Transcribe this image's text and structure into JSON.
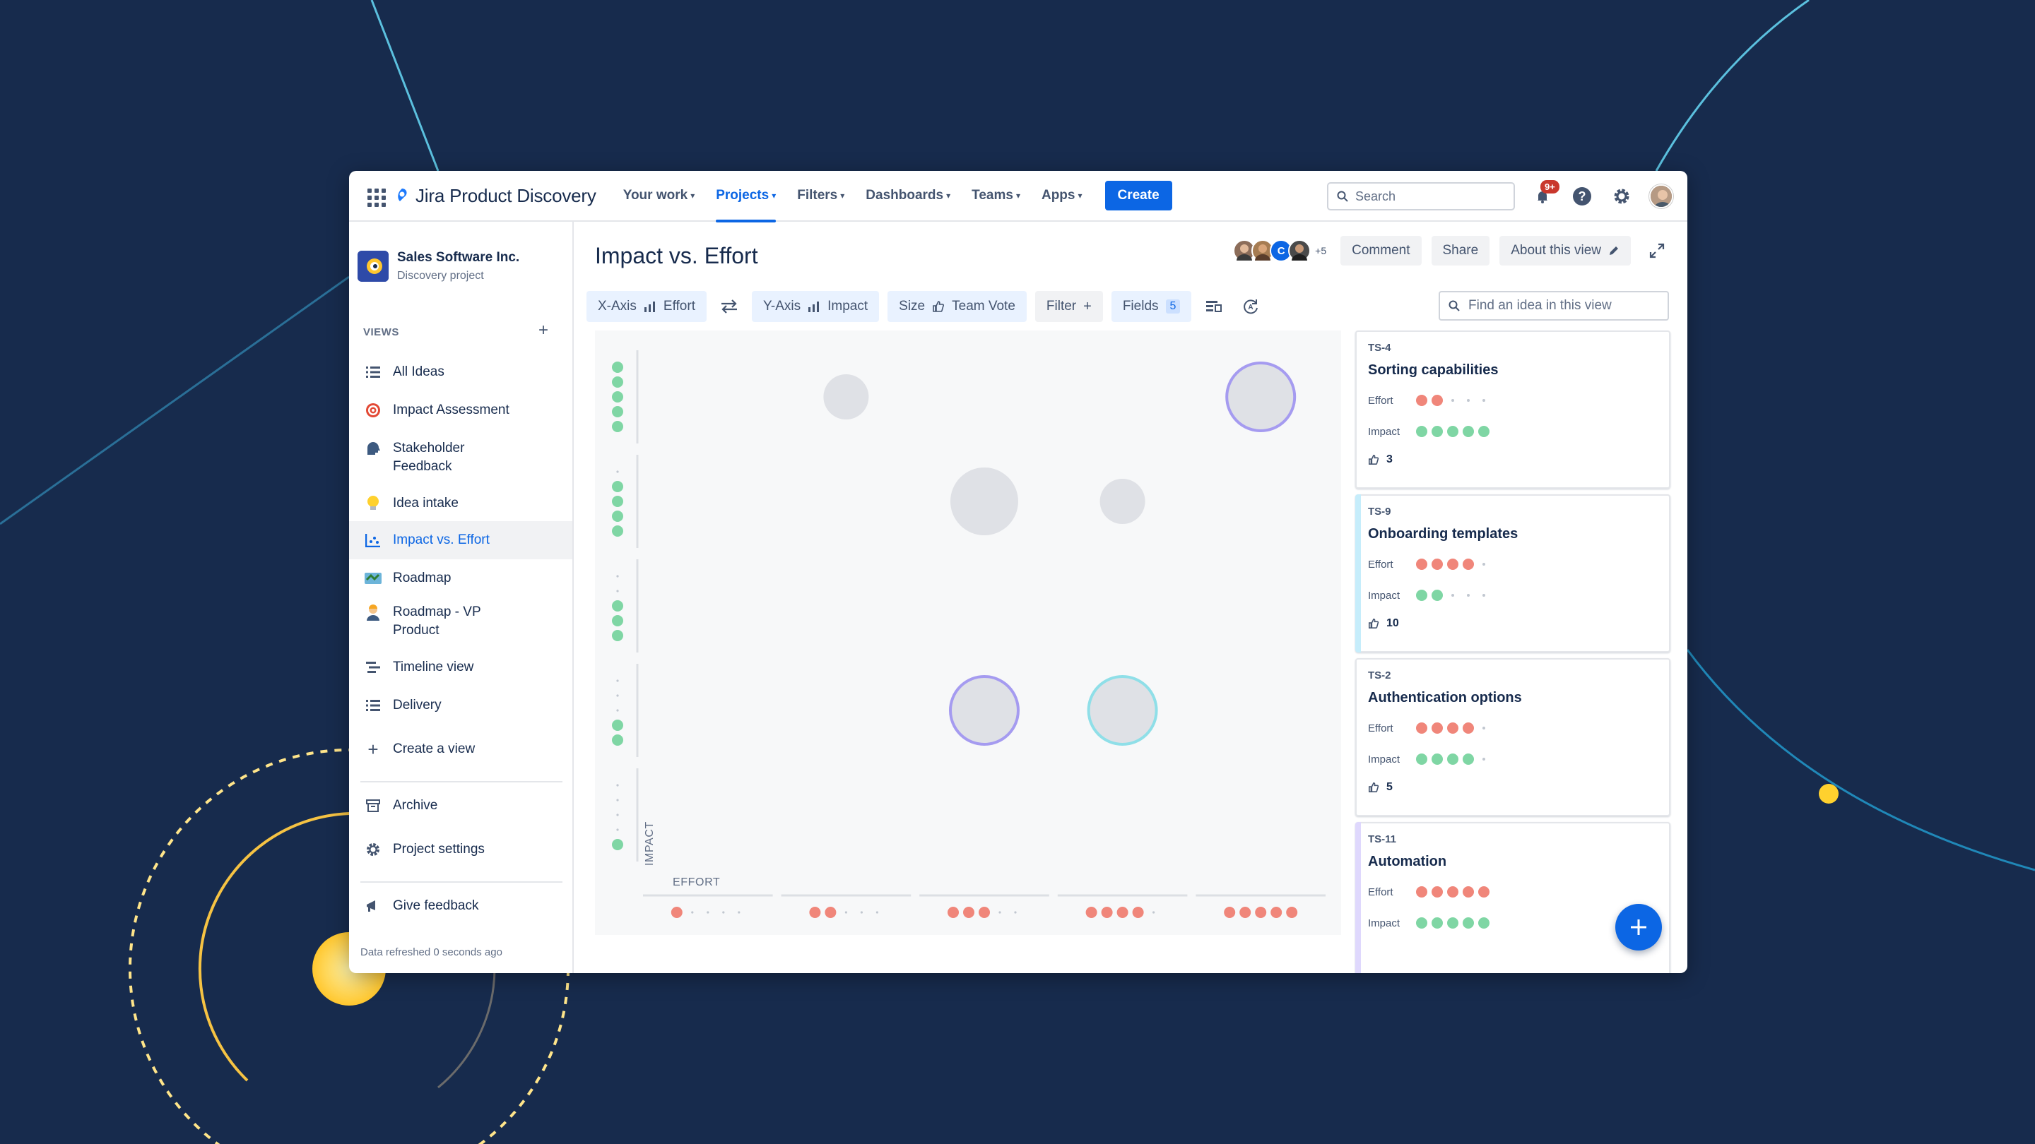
{
  "brand": {
    "app_name": "Jira Product Discovery"
  },
  "nav": {
    "items": [
      {
        "label": "Your work",
        "active": false
      },
      {
        "label": "Projects",
        "active": true
      },
      {
        "label": "Filters",
        "active": false
      },
      {
        "label": "Dashboards",
        "active": false
      },
      {
        "label": "Teams",
        "active": false
      },
      {
        "label": "Apps",
        "active": false
      }
    ],
    "create_label": "Create",
    "search_placeholder": "Search",
    "notifications_badge": "9+"
  },
  "sidebar": {
    "project_name": "Sales Software Inc.",
    "project_type": "Discovery project",
    "views_title": "VIEWS",
    "items": [
      {
        "label": "All Ideas",
        "icon": "list-icon"
      },
      {
        "label": "Impact Assessment",
        "icon": "target-icon"
      },
      {
        "label": "Stakeholder Feedback",
        "icon": "speaking-head-icon"
      },
      {
        "label": "Idea intake",
        "icon": "lightbulb-icon"
      },
      {
        "label": "Impact vs. Effort",
        "icon": "scatter-chart-icon",
        "active": true
      },
      {
        "label": "Roadmap",
        "icon": "map-icon"
      },
      {
        "label": "Roadmap - VP Product",
        "icon": "person-icon"
      },
      {
        "label": "Timeline view",
        "icon": "timeline-icon"
      },
      {
        "label": "Delivery",
        "icon": "list-icon"
      }
    ],
    "create_view": "Create a view",
    "archive": "Archive",
    "project_settings": "Project settings",
    "give_feedback": "Give feedback",
    "refreshed": "Data refreshed 0 seconds ago"
  },
  "header": {
    "title": "Impact vs. Effort",
    "collaborators_more": "+5",
    "collaborator_initial": "C",
    "comment": "Comment",
    "share": "Share",
    "about": "About this view"
  },
  "toolbar": {
    "x_axis_label": "X-Axis",
    "x_axis_value": "Effort",
    "y_axis_label": "Y-Axis",
    "y_axis_value": "Impact",
    "size_label": "Size",
    "size_value": "Team Vote",
    "filter_label": "Filter",
    "fields_label": "Fields",
    "fields_count": "5",
    "find_placeholder": "Find an idea in this view"
  },
  "colors": {
    "accent": "#0c66e4",
    "effort_dot": "#f0867a",
    "impact_dot": "#7fd6a4",
    "bubble": "#dfe1e6",
    "background": "#172b4d"
  },
  "chart_data": {
    "type": "scatter",
    "xlabel": "EFFORT",
    "ylabel": "IMPACT",
    "x_levels": [
      1,
      2,
      3,
      4,
      5
    ],
    "y_levels": [
      1,
      2,
      3,
      4,
      5
    ],
    "points": [
      {
        "x": 2,
        "y": 5,
        "size": "medium",
        "outline": "none"
      },
      {
        "x": 5,
        "y": 5,
        "size": "large",
        "outline": "#a59bf0"
      },
      {
        "x": 3,
        "y": 4,
        "size": "large",
        "outline": "none"
      },
      {
        "x": 4,
        "y": 4,
        "size": "medium",
        "outline": "none"
      },
      {
        "x": 3,
        "y": 2,
        "size": "large",
        "outline": "#a59bf0"
      },
      {
        "x": 4,
        "y": 2,
        "size": "large",
        "outline": "#8fdfe8"
      }
    ]
  },
  "cards": [
    {
      "key": "TS-4",
      "title": "Sorting capabilities",
      "effort": 2,
      "impact": 5,
      "votes": "3",
      "accent": ""
    },
    {
      "key": "TS-9",
      "title": "Onboarding templates",
      "effort": 4,
      "impact": 2,
      "votes": "10",
      "accent": "#c6edfb"
    },
    {
      "key": "TS-2",
      "title": "Authentication options",
      "effort": 4,
      "impact": 4,
      "votes": "5",
      "accent": ""
    },
    {
      "key": "TS-11",
      "title": "Automation",
      "effort": 5,
      "impact": 5,
      "votes": "",
      "accent": "#dfd8fd"
    }
  ],
  "field_labels": {
    "effort": "Effort",
    "impact": "Impact"
  }
}
